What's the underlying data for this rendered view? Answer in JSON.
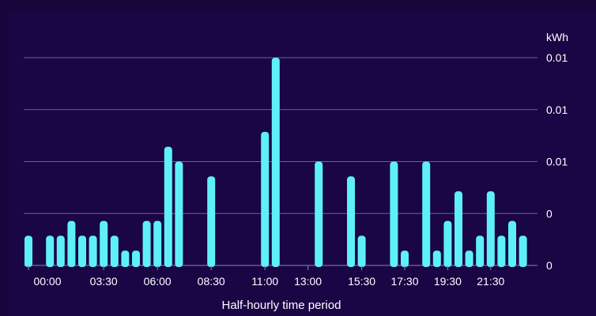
{
  "chart_data": {
    "type": "bar",
    "xlabel": "Half-hourly time period",
    "ylabel": "kWh",
    "x_tick_labels": [
      "00:00",
      "03:30",
      "06:00",
      "08:30",
      "11:00",
      "13:00",
      "15:30",
      "17:30",
      "19:30",
      "21:30"
    ],
    "x_tick_slots": [
      0,
      7,
      12,
      17,
      22,
      26,
      31,
      35,
      39,
      43
    ],
    "y_tick_labels": [
      "0",
      "0",
      "0.01",
      "0.01",
      "0.01"
    ],
    "ylim": [
      0,
      0.014
    ],
    "grid": true,
    "bar_color": "#5ef0f8",
    "values": [
      0.002,
      0,
      0.002,
      0.002,
      0.003,
      0.002,
      0.002,
      0.003,
      0.002,
      0.001,
      0.001,
      0.003,
      0.003,
      0.008,
      0.007,
      0,
      0,
      0.006,
      0,
      0,
      0,
      0,
      0.009,
      0.014,
      0,
      0,
      0,
      0.007,
      0,
      0,
      0.006,
      0.002,
      0,
      0,
      0.007,
      0.001,
      0,
      0.007,
      0.001,
      0.003,
      0.005,
      0.001,
      0.002,
      0.005,
      0.002,
      0.003,
      0.002
    ]
  }
}
